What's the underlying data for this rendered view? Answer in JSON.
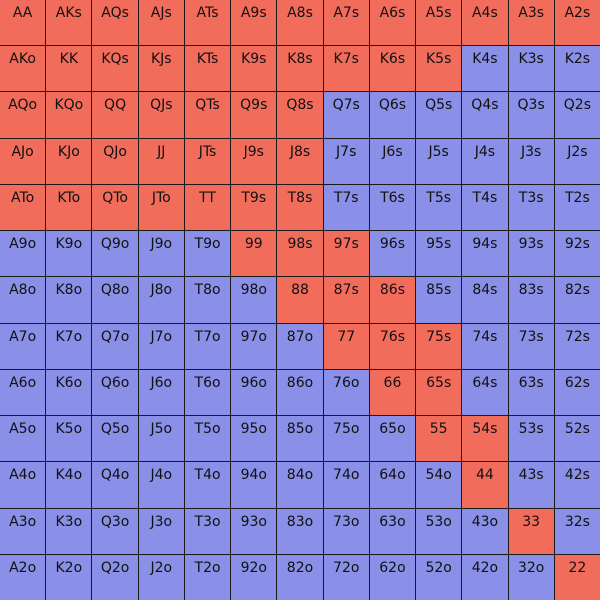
{
  "colors": {
    "raise": "#f26c5b",
    "fold": "#8a8fe8"
  },
  "rows": [
    [
      "AA",
      "AKs",
      "AQs",
      "AJs",
      "ATs",
      "A9s",
      "A8s",
      "A7s",
      "A6s",
      "A5s",
      "A4s",
      "A3s",
      "A2s"
    ],
    [
      "AKo",
      "KK",
      "KQs",
      "KJs",
      "KTs",
      "K9s",
      "K8s",
      "K7s",
      "K6s",
      "K5s",
      "K4s",
      "K3s",
      "K2s"
    ],
    [
      "AQo",
      "KQo",
      "QQ",
      "QJs",
      "QTs",
      "Q9s",
      "Q8s",
      "Q7s",
      "Q6s",
      "Q5s",
      "Q4s",
      "Q3s",
      "Q2s"
    ],
    [
      "AJo",
      "KJo",
      "QJo",
      "JJ",
      "JTs",
      "J9s",
      "J8s",
      "J7s",
      "J6s",
      "J5s",
      "J4s",
      "J3s",
      "J2s"
    ],
    [
      "ATo",
      "KTo",
      "QTo",
      "JTo",
      "TT",
      "T9s",
      "T8s",
      "T7s",
      "T6s",
      "T5s",
      "T4s",
      "T3s",
      "T2s"
    ],
    [
      "A9o",
      "K9o",
      "Q9o",
      "J9o",
      "T9o",
      "99",
      "98s",
      "97s",
      "96s",
      "95s",
      "94s",
      "93s",
      "92s"
    ],
    [
      "A8o",
      "K8o",
      "Q8o",
      "J8o",
      "T8o",
      "98o",
      "88",
      "87s",
      "86s",
      "85s",
      "84s",
      "83s",
      "82s"
    ],
    [
      "A7o",
      "K7o",
      "Q7o",
      "J7o",
      "T7o",
      "97o",
      "87o",
      "77",
      "76s",
      "75s",
      "74s",
      "73s",
      "72s"
    ],
    [
      "A6o",
      "K6o",
      "Q6o",
      "J6o",
      "T6o",
      "96o",
      "86o",
      "76o",
      "66",
      "65s",
      "64s",
      "63s",
      "62s"
    ],
    [
      "A5o",
      "K5o",
      "Q5o",
      "J5o",
      "T5o",
      "95o",
      "85o",
      "75o",
      "65o",
      "55",
      "54s",
      "53s",
      "52s"
    ],
    [
      "A4o",
      "K4o",
      "Q4o",
      "J4o",
      "T4o",
      "94o",
      "84o",
      "74o",
      "64o",
      "54o",
      "44",
      "43s",
      "42s"
    ],
    [
      "A3o",
      "K3o",
      "Q3o",
      "J3o",
      "T3o",
      "93o",
      "83o",
      "73o",
      "63o",
      "53o",
      "43o",
      "33",
      "32s"
    ],
    [
      "A2o",
      "K2o",
      "Q2o",
      "J2o",
      "T2o",
      "92o",
      "82o",
      "72o",
      "62o",
      "52o",
      "42o",
      "32o",
      "22"
    ]
  ],
  "actions": [
    "RRRRRRRRRRRRR",
    "RRRRRRRRRRFFF",
    "RRRRRRRFFFFFF",
    "RRRRRRRFFFFFF",
    "RRRRRRRFFFFFF",
    "FFFFFRRRFFFFF",
    "FFFFFFRRRFFFF",
    "FFFFFFFRRRFFF",
    "FFFFFFFFRRFFF",
    "FFFFFFFFFRRFF",
    "FFFFFFFFFFRFF",
    "FFFFFFFFFFFRF",
    "FFFFFFFFFFFFR"
  ]
}
